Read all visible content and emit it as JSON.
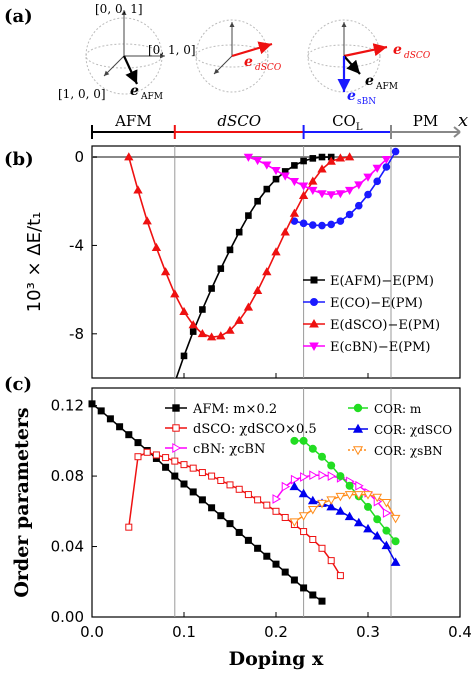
{
  "panel_labels": {
    "a": "(a)",
    "b": "(b)",
    "c": "(c)"
  },
  "sphere_labels": {
    "axis_001": "[0, 0, 1]",
    "axis_010": "[0, 1, 0]",
    "axis_100": "[1, 0, 0]",
    "e_afm": "e",
    "e_afm_sub": "AFM",
    "e_dsco": "e",
    "e_dsco_sub": "dSCO",
    "e_sbn": "e",
    "e_sbn_sub": "sBN"
  },
  "colors": {
    "afm": "#000000",
    "col": "#1a1aff",
    "dsco": "#ee1111",
    "cbn": "#ff00ff",
    "cor_m": "#22dd22",
    "cor_dsco": "#0000ee",
    "cor_sbn": "#ff8c1a",
    "pm": "#888888",
    "guide": "#9a9a9a"
  },
  "phase_bar": {
    "segments": [
      {
        "label": "AFM",
        "from": 0.0,
        "to": 0.09,
        "color": "#000000"
      },
      {
        "label": "dSCO",
        "from": 0.09,
        "to": 0.23,
        "color": "#ee1111"
      },
      {
        "label": "CO",
        "sub": "L",
        "from": 0.23,
        "to": 0.325,
        "color": "#1a1aff"
      },
      {
        "label": "PM",
        "from": 0.325,
        "to": 0.4,
        "color": "#888888"
      }
    ],
    "x_symbol": "x"
  },
  "guide_lines_x": [
    0.09,
    0.23,
    0.325
  ],
  "chart_data": [
    {
      "type": "line",
      "panel": "b",
      "ylabel": "10³ × ΔE/t₁",
      "ylim": [
        -10,
        0.5
      ],
      "xlim": [
        0.0,
        0.4
      ],
      "yticks": [
        0,
        -4,
        -8
      ],
      "ytick_labels": [
        "0",
        "-4",
        "-8"
      ],
      "legend_position": "bottom-right",
      "series": [
        {
          "name": "E(AFM)−E(PM)",
          "key": "afm",
          "marker": "square",
          "x": [
            0.09,
            0.1,
            0.11,
            0.12,
            0.13,
            0.14,
            0.15,
            0.16,
            0.17,
            0.18,
            0.19,
            0.2,
            0.21,
            0.22,
            0.23,
            0.24,
            0.25,
            0.26
          ],
          "y": [
            -10.2,
            -9.0,
            -7.9,
            -6.9,
            -5.95,
            -5.05,
            -4.2,
            -3.4,
            -2.65,
            -2.0,
            -1.45,
            -1.0,
            -0.65,
            -0.38,
            -0.18,
            -0.06,
            0.0,
            0.0
          ]
        },
        {
          "name": "E(CO_L)−E(PM)",
          "key": "col",
          "marker": "circle",
          "x": [
            0.22,
            0.23,
            0.24,
            0.25,
            0.26,
            0.27,
            0.28,
            0.29,
            0.3,
            0.31,
            0.32,
            0.33
          ],
          "y": [
            -2.9,
            -3.0,
            -3.08,
            -3.1,
            -3.05,
            -2.9,
            -2.6,
            -2.2,
            -1.7,
            -1.1,
            -0.45,
            0.25
          ]
        },
        {
          "name": "E(dSCO)−E(PM)",
          "key": "dsco",
          "marker": "triangle-up",
          "x": [
            0.04,
            0.05,
            0.06,
            0.07,
            0.08,
            0.09,
            0.1,
            0.11,
            0.12,
            0.13,
            0.14,
            0.15,
            0.16,
            0.17,
            0.18,
            0.19,
            0.2,
            0.21,
            0.22,
            0.23,
            0.24,
            0.25,
            0.26,
            0.27,
            0.28
          ],
          "y": [
            0.0,
            -1.5,
            -2.9,
            -4.1,
            -5.2,
            -6.2,
            -7.0,
            -7.6,
            -8.0,
            -8.15,
            -8.1,
            -7.85,
            -7.4,
            -6.8,
            -6.05,
            -5.2,
            -4.3,
            -3.4,
            -2.55,
            -1.75,
            -1.1,
            -0.55,
            -0.2,
            -0.05,
            0.0
          ]
        },
        {
          "name": "E(cBN)−E(PM)",
          "key": "cbn",
          "marker": "triangle-down",
          "x": [
            0.17,
            0.18,
            0.19,
            0.2,
            0.21,
            0.22,
            0.23,
            0.24,
            0.25,
            0.26,
            0.27,
            0.28,
            0.29,
            0.3,
            0.31,
            0.32
          ],
          "y": [
            0.0,
            -0.15,
            -0.35,
            -0.6,
            -0.85,
            -1.1,
            -1.3,
            -1.5,
            -1.65,
            -1.7,
            -1.65,
            -1.5,
            -1.25,
            -0.9,
            -0.5,
            -0.1
          ]
        }
      ],
      "pm_baseline": {
        "y": 0.0,
        "from": 0.0,
        "to": 0.4
      }
    },
    {
      "type": "line",
      "panel": "c",
      "ylabel": "Order parameters",
      "xlabel": "Doping x",
      "xlim": [
        0.0,
        0.4
      ],
      "ylim": [
        0.0,
        0.13
      ],
      "xticks": [
        0.0,
        0.1,
        0.2,
        0.3,
        0.4
      ],
      "xtick_labels": [
        "0.0",
        "0.1",
        "0.2",
        "0.3",
        "0.4"
      ],
      "yticks": [
        0.0,
        0.04,
        0.08,
        0.12
      ],
      "ytick_labels": [
        "0.00",
        "0.04",
        "0.08",
        "0.12"
      ],
      "series": [
        {
          "name": "AFM: m×0.2",
          "key": "afm",
          "marker": "square",
          "fill": true,
          "x": [
            0.0,
            0.01,
            0.02,
            0.03,
            0.04,
            0.05,
            0.06,
            0.07,
            0.08,
            0.09,
            0.1,
            0.11,
            0.12,
            0.13,
            0.14,
            0.15,
            0.16,
            0.17,
            0.18,
            0.19,
            0.2,
            0.21,
            0.22,
            0.23,
            0.24,
            0.25
          ],
          "y": [
            0.121,
            0.117,
            0.1125,
            0.108,
            0.1035,
            0.099,
            0.0945,
            0.09,
            0.085,
            0.08,
            0.0755,
            0.071,
            0.0665,
            0.062,
            0.0575,
            0.053,
            0.048,
            0.0435,
            0.039,
            0.0345,
            0.03,
            0.0255,
            0.021,
            0.0165,
            0.0125,
            0.009
          ]
        },
        {
          "name": "dSCO: χdSCO×0.5",
          "key": "dsco",
          "marker": "square",
          "fill": false,
          "x": [
            0.04,
            0.05,
            0.06,
            0.07,
            0.08,
            0.09,
            0.1,
            0.11,
            0.12,
            0.13,
            0.14,
            0.15,
            0.16,
            0.17,
            0.18,
            0.19,
            0.2,
            0.21,
            0.22,
            0.23,
            0.24,
            0.25,
            0.26,
            0.27
          ],
          "y": [
            0.051,
            0.091,
            0.0935,
            0.092,
            0.0905,
            0.0885,
            0.0865,
            0.0845,
            0.082,
            0.08,
            0.0775,
            0.075,
            0.0725,
            0.0695,
            0.0665,
            0.0635,
            0.06,
            0.0565,
            0.0525,
            0.0485,
            0.044,
            0.039,
            0.032,
            0.0235
          ]
        },
        {
          "name": "cBN: χcBN",
          "key": "cbn",
          "marker": "triangle-right",
          "fill": false,
          "x": [
            0.2,
            0.21,
            0.22,
            0.23,
            0.24,
            0.25,
            0.26,
            0.27,
            0.28,
            0.29,
            0.3,
            0.31,
            0.32
          ],
          "y": [
            0.067,
            0.074,
            0.078,
            0.0795,
            0.0805,
            0.0805,
            0.08,
            0.079,
            0.077,
            0.0745,
            0.0705,
            0.0655,
            0.059
          ]
        },
        {
          "name": "COR: m",
          "key": "cor_m",
          "marker": "circle",
          "fill": true,
          "x": [
            0.22,
            0.23,
            0.24,
            0.25,
            0.26,
            0.27,
            0.28,
            0.29,
            0.3,
            0.31,
            0.32,
            0.33
          ],
          "y": [
            0.1,
            0.1,
            0.0955,
            0.091,
            0.086,
            0.08,
            0.0745,
            0.0685,
            0.0625,
            0.0555,
            0.049,
            0.043
          ]
        },
        {
          "name": "COR: χdSCO",
          "key": "cor_dsco",
          "marker": "triangle-up",
          "fill": true,
          "x": [
            0.22,
            0.23,
            0.24,
            0.25,
            0.26,
            0.27,
            0.28,
            0.29,
            0.3,
            0.31,
            0.32,
            0.33
          ],
          "y": [
            0.074,
            0.07,
            0.066,
            0.0645,
            0.0625,
            0.06,
            0.057,
            0.0535,
            0.05,
            0.046,
            0.0405,
            0.031
          ]
        },
        {
          "name": "COR: χsBN",
          "key": "cor_sbn",
          "marker": "triangle-down",
          "fill": false,
          "x": [
            0.22,
            0.23,
            0.24,
            0.25,
            0.26,
            0.27,
            0.28,
            0.29,
            0.3,
            0.31,
            0.32,
            0.33
          ],
          "y": [
            0.054,
            0.0575,
            0.061,
            0.0645,
            0.0665,
            0.0685,
            0.0695,
            0.0695,
            0.0695,
            0.068,
            0.065,
            0.056
          ]
        }
      ],
      "legend_left_title": [
        "AFM:",
        "dSCO:",
        "cBN:"
      ],
      "legend_right_title": [
        "COR:",
        "COR:",
        "COR:"
      ]
    }
  ]
}
